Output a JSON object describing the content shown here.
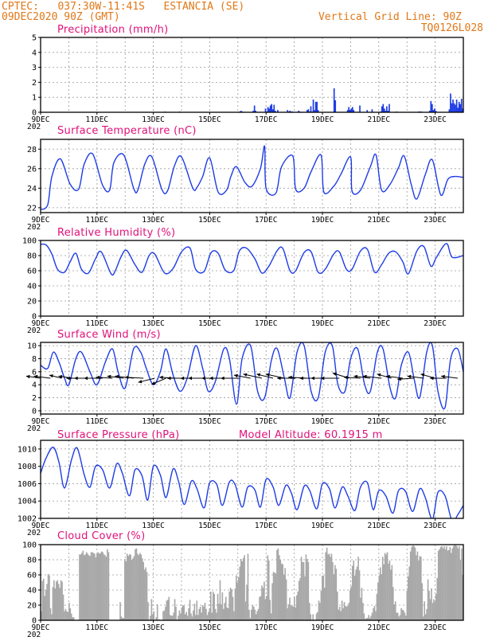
{
  "header": {
    "left_line1": "CPTEC:   037:30W-11:41S   ESTANCIA (SE)",
    "left_line2": "09DEC2020 90Z (GMT)",
    "right_line1": "Vertical Grid Line: 90Z",
    "right_line2": "TQ0126L028"
  },
  "colors": {
    "header": "#e07818",
    "title": "#e0107a",
    "series": "#1e3ce6",
    "cloud": "#a8a8a8",
    "arrow": "#000000"
  },
  "x_axis": {
    "start": "09DEC",
    "days": 15,
    "tick_labels": [
      "9DEC",
      "11DEC",
      "13DEC",
      "15DEC",
      "17DEC",
      "19DEC",
      "21DEC",
      "23DEC"
    ],
    "tick_day_offsets": [
      0,
      2,
      4,
      6,
      8,
      10,
      12,
      14
    ],
    "start_label_fragment": "202"
  },
  "chart_data": [
    {
      "type": "bar",
      "title": "Precipitation (mm/h)",
      "ylim": [
        0,
        5
      ],
      "yticks": [
        0,
        1,
        2,
        3,
        4,
        5
      ],
      "grid": true,
      "values": [
        0,
        0,
        0,
        0,
        0,
        0,
        0,
        0,
        0,
        0,
        0,
        0,
        0,
        0,
        0,
        0,
        0,
        0,
        0,
        0,
        0,
        0,
        0,
        0,
        0,
        0,
        0,
        0,
        0,
        0,
        0,
        0,
        0,
        0,
        0,
        0,
        0,
        0,
        0,
        0,
        0,
        0,
        0,
        0,
        0,
        0,
        0,
        0,
        0,
        0,
        0,
        0,
        0,
        0,
        0,
        0,
        0,
        0,
        0,
        0,
        0,
        0,
        0,
        0,
        0,
        0,
        0,
        0,
        0,
        0,
        0,
        0,
        0,
        0,
        0,
        0,
        0,
        0,
        0,
        0,
        0,
        0,
        0,
        0,
        0,
        0,
        0,
        0,
        0,
        0,
        0,
        0,
        0,
        0,
        0,
        0,
        0,
        0,
        0,
        0,
        0,
        0.05,
        0,
        0,
        0,
        0,
        0,
        0,
        0,
        0,
        0,
        0,
        0,
        0.05,
        0,
        0,
        0,
        0,
        0,
        0,
        0,
        0,
        0,
        0,
        0,
        0,
        0,
        0,
        0,
        0,
        0,
        0,
        0,
        0,
        0,
        0,
        0,
        0,
        0,
        0,
        0,
        0,
        0,
        0,
        0,
        0,
        0,
        0,
        0,
        0,
        0,
        0,
        0,
        0,
        0,
        0,
        0,
        0,
        0,
        0,
        0,
        0,
        0.05,
        0.1,
        0.05,
        0,
        0,
        0,
        0,
        0,
        0,
        0,
        0,
        0.1,
        0.45,
        0.1,
        0,
        0,
        0,
        0,
        0,
        0,
        0,
        0.25,
        0.05,
        0.35,
        0.25,
        0.45,
        0.55,
        0.2,
        0.5,
        0.1,
        0,
        0.15,
        0,
        0,
        0,
        0,
        0,
        0,
        0,
        0.15,
        0.05,
        0.1,
        0.05,
        0.05,
        0,
        0,
        0,
        0,
        0.1,
        0.05,
        0,
        0,
        0,
        0,
        0,
        0.15,
        0.2,
        0.05,
        0.4,
        0.05,
        0.85,
        0.15,
        0.7,
        0.7,
        0.15,
        0,
        0,
        0,
        0,
        0,
        0,
        0,
        0,
        0,
        0,
        0,
        0,
        1.6,
        0.8,
        0,
        0,
        0,
        0,
        0,
        0,
        0,
        0,
        0,
        0.15,
        0.35,
        0.15,
        0.25,
        0.35,
        0.15,
        0,
        0,
        0,
        0,
        0.45,
        0,
        0,
        0,
        0,
        0,
        0.15,
        0,
        0,
        0,
        0.2,
        0,
        0,
        0,
        0,
        0,
        0,
        0.05,
        0.4,
        0.55,
        0.25,
        0.1,
        0.4,
        0.1,
        0.55,
        0,
        0,
        0,
        0,
        0,
        0.05,
        0,
        0,
        0,
        0,
        0,
        0,
        0,
        0,
        0,
        0,
        0,
        0,
        0,
        0,
        0,
        0,
        0,
        0.05,
        0.05,
        0.05,
        0,
        0,
        0,
        0,
        0,
        0,
        0.1,
        0.75,
        0.55,
        0.15,
        0.25,
        0.1,
        0,
        0,
        0,
        0,
        0,
        0,
        0,
        0,
        0,
        0,
        0.2,
        1.25,
        0.6,
        0.85,
        0.6,
        0.5,
        0.85,
        0.3,
        0.7,
        0.55,
        0.9,
        0.25
      ]
    },
    {
      "type": "line",
      "title": "Surface Temperature (nC)",
      "ylim": [
        21.5,
        29
      ],
      "yticks": [
        22,
        24,
        26,
        28
      ],
      "grid": true,
      "x": [
        0,
        0.25,
        0.4,
        0.7,
        1.05,
        1.35,
        1.55,
        1.85,
        2.2,
        2.45,
        2.6,
        2.95,
        3.3,
        3.45,
        3.7,
        3.95,
        4.3,
        4.5,
        4.75,
        5.0,
        5.4,
        5.55,
        5.75,
        6.0,
        6.3,
        6.6,
        6.75,
        6.95,
        7.25,
        7.5,
        7.8,
        7.95,
        8.0,
        8.35,
        8.55,
        8.95,
        9.05,
        9.35,
        9.6,
        9.95,
        10.05,
        10.4,
        10.65,
        11.0,
        11.05,
        11.35,
        11.7,
        11.9,
        12.1,
        12.4,
        12.7,
        12.9,
        13.15,
        13.35,
        13.65,
        13.9,
        14.2,
        14.45,
        14.7,
        15.0
      ],
      "values": [
        21.8,
        22.3,
        25.2,
        27.0,
        24.4,
        23.9,
        26.5,
        27.5,
        24.3,
        23.8,
        26.6,
        27.4,
        24.0,
        23.8,
        26.5,
        27.2,
        23.9,
        23.7,
        26.3,
        27.2,
        24.0,
        24.1,
        25.2,
        27.1,
        23.6,
        23.8,
        25.2,
        26.2,
        24.6,
        24.2,
        26.0,
        28.3,
        24.0,
        23.5,
        26.2,
        27.3,
        23.9,
        24.0,
        25.7,
        27.4,
        23.6,
        24.2,
        25.4,
        27.2,
        23.7,
        23.8,
        26.2,
        27.4,
        23.8,
        24.4,
        26.1,
        27.3,
        24.4,
        22.9,
        25.4,
        26.9,
        23.3,
        24.9,
        25.2,
        25.1
      ]
    },
    {
      "type": "line",
      "title": "Relative Humidity (%)",
      "ylim": [
        0,
        100
      ],
      "yticks": [
        0,
        20,
        40,
        60,
        80,
        100
      ],
      "grid": true,
      "x": [
        0,
        0.2,
        0.4,
        0.6,
        0.85,
        1.05,
        1.25,
        1.45,
        1.7,
        1.95,
        2.15,
        2.5,
        2.65,
        2.85,
        3.05,
        3.35,
        3.6,
        3.85,
        4.05,
        4.4,
        4.7,
        5.0,
        5.3,
        5.5,
        5.8,
        6.05,
        6.3,
        6.55,
        6.85,
        7.05,
        7.3,
        7.6,
        7.85,
        8.1,
        8.4,
        8.6,
        8.85,
        9.05,
        9.35,
        9.6,
        9.85,
        10.1,
        10.4,
        10.6,
        10.85,
        11.05,
        11.35,
        11.6,
        11.85,
        12.1,
        12.35,
        12.6,
        12.85,
        13.05,
        13.35,
        13.6,
        13.85,
        14.05,
        14.4,
        14.6,
        15.0
      ],
      "values": [
        95,
        94,
        82,
        62,
        58,
        72,
        83,
        62,
        57,
        76,
        85,
        56,
        60,
        78,
        87,
        68,
        58,
        80,
        82,
        57,
        63,
        85,
        90,
        62,
        59,
        84,
        83,
        61,
        60,
        86,
        90,
        76,
        57,
        66,
        87,
        89,
        60,
        60,
        84,
        85,
        58,
        62,
        82,
        85,
        62,
        62,
        86,
        88,
        58,
        68,
        83,
        85,
        72,
        56,
        86,
        92,
        66,
        78,
        96,
        78,
        80
      ]
    },
    {
      "type": "line",
      "title": "Surface Wind (m/s)",
      "ylim": [
        -0.5,
        10.5
      ],
      "yticks": [
        0,
        2,
        4,
        6,
        8,
        10
      ],
      "grid": true,
      "x": [
        0,
        0.25,
        0.45,
        0.65,
        0.85,
        1.0,
        1.25,
        1.45,
        1.75,
        2.0,
        2.3,
        2.55,
        2.75,
        3.0,
        3.3,
        3.55,
        3.75,
        4.0,
        4.25,
        4.45,
        4.7,
        4.95,
        5.2,
        5.5,
        5.75,
        5.95,
        6.2,
        6.5,
        6.7,
        6.95,
        7.15,
        7.45,
        7.7,
        7.95,
        8.2,
        8.4,
        8.65,
        8.85,
        9.1,
        9.35,
        9.6,
        9.85,
        10.1,
        10.35,
        10.55,
        10.8,
        11.0,
        11.25,
        11.5,
        11.7,
        11.95,
        12.15,
        12.4,
        12.6,
        12.8,
        13.05,
        13.25,
        13.45,
        13.7,
        13.9,
        14.1,
        14.35,
        14.55,
        14.8,
        15.0
      ],
      "values": [
        7,
        6.5,
        9,
        7.5,
        5,
        4,
        8,
        9,
        6,
        4,
        7.5,
        9.5,
        6,
        3.5,
        9.5,
        9,
        6.5,
        4,
        6,
        9.5,
        5.5,
        3,
        5,
        10,
        6.5,
        3,
        4.5,
        9.5,
        8,
        1,
        8,
        10,
        3,
        2,
        8,
        9.5,
        5,
        2,
        9,
        10,
        3,
        2,
        9,
        10,
        4,
        3,
        8,
        9.5,
        4,
        3,
        9,
        9.5,
        3.5,
        2,
        7,
        9,
        5,
        2,
        9,
        10,
        3,
        0.5,
        8,
        9.5,
        6
      ],
      "arrows": {
        "x": [
          0.0,
          0.35,
          0.75,
          1.15,
          1.5,
          1.85,
          2.2,
          2.55,
          2.95,
          3.3,
          3.65,
          4.05,
          4.45,
          4.8,
          5.15,
          5.55,
          5.9,
          6.3,
          6.65,
          7.05,
          7.45,
          7.85,
          8.25,
          8.65,
          9.05,
          9.45,
          9.85,
          10.25,
          10.6,
          10.95,
          11.35,
          11.7,
          12.1,
          12.45,
          12.85,
          13.25,
          13.6,
          14.0,
          14.4,
          14.8
        ],
        "u": [
          -0.7,
          -0.8,
          -0.6,
          -0.7,
          -0.8,
          -0.9,
          -0.9,
          -0.8,
          -0.8,
          -0.9,
          -0.9,
          -0.8,
          -0.7,
          -0.8,
          -0.9,
          -0.8,
          -0.9,
          -0.8,
          -0.9,
          -0.9,
          -0.8,
          -0.9,
          -0.8,
          -0.9,
          -0.9,
          -0.9,
          -0.9,
          -0.9,
          -0.9,
          -0.8,
          -0.8,
          -0.8,
          -0.9,
          -0.7,
          -0.8,
          -0.8,
          -0.8,
          -0.7,
          -0.8,
          -0.8
        ],
        "v": [
          0.1,
          0.1,
          0.15,
          0.1,
          0.0,
          0.0,
          0.0,
          0.05,
          0.1,
          0.1,
          0.05,
          -0.2,
          -0.3,
          0.05,
          0.0,
          0.0,
          0.0,
          0.0,
          0.0,
          0.0,
          0.15,
          0.2,
          0.2,
          0.2,
          0.0,
          0.05,
          0.0,
          0.0,
          0.0,
          0.25,
          0.05,
          0.1,
          0.1,
          0.2,
          0.1,
          -0.05,
          0.1,
          0.2,
          0.0,
          0.1
        ]
      }
    },
    {
      "type": "line",
      "title": "Surface Pressure (hPa)",
      "annotation": "Model Altitude: 60.1915  m",
      "ylim": [
        1002,
        1011
      ],
      "yticks": [
        1002,
        1004,
        1006,
        1008,
        1010
      ],
      "grid": true,
      "x": [
        0,
        0.2,
        0.45,
        0.65,
        0.85,
        1.1,
        1.3,
        1.55,
        1.75,
        1.95,
        2.2,
        2.45,
        2.7,
        2.9,
        3.15,
        3.35,
        3.6,
        3.8,
        4.0,
        4.25,
        4.45,
        4.7,
        4.9,
        5.1,
        5.35,
        5.55,
        5.8,
        6.0,
        6.25,
        6.45,
        6.7,
        6.9,
        7.15,
        7.35,
        7.6,
        7.8,
        8.0,
        8.25,
        8.45,
        8.7,
        8.9,
        9.1,
        9.35,
        9.55,
        9.8,
        10.0,
        10.25,
        10.45,
        10.7,
        10.9,
        11.15,
        11.35,
        11.6,
        11.8,
        12.0,
        12.25,
        12.5,
        12.7,
        12.95,
        13.2,
        13.45,
        13.65,
        13.9,
        14.1,
        14.35,
        14.6,
        14.8,
        15.0
      ],
      "values": [
        1007.2,
        1009.0,
        1010.2,
        1008.5,
        1005.5,
        1008.8,
        1010.1,
        1007.0,
        1005.6,
        1008.0,
        1007.6,
        1005.5,
        1008.3,
        1007.2,
        1004.6,
        1007.6,
        1006.9,
        1004.1,
        1008.0,
        1007.0,
        1004.4,
        1007.7,
        1006.2,
        1003.6,
        1006.3,
        1005.4,
        1003.2,
        1006.1,
        1005.9,
        1003.5,
        1006.2,
        1005.9,
        1003.3,
        1005.6,
        1005.3,
        1003.3,
        1006.5,
        1005.6,
        1003.5,
        1005.8,
        1004.9,
        1003.0,
        1005.7,
        1005.2,
        1003.1,
        1006.0,
        1005.4,
        1003.2,
        1005.6,
        1004.6,
        1002.9,
        1005.6,
        1006.1,
        1003.0,
        1005.2,
        1004.6,
        1002.6,
        1005.2,
        1005.1,
        1002.8,
        1005.4,
        1004.4,
        1001.9,
        1005.0,
        1004.6,
        1001.7,
        1002.4,
        1003.5
      ]
    },
    {
      "type": "bar",
      "title": "Cloud Cover (%)",
      "ylim": [
        0,
        100
      ],
      "yticks": [
        0,
        20,
        40,
        60,
        80,
        100
      ],
      "grid": true,
      "values": [
        12,
        52,
        55,
        32,
        40,
        48,
        61,
        59,
        16,
        8,
        44,
        53,
        42,
        51,
        53,
        48,
        43,
        53,
        51,
        34,
        12,
        15,
        12,
        11,
        23,
        16,
        9,
        4,
        4,
        0,
        0,
        0,
        0,
        87,
        87,
        89,
        92,
        86,
        87,
        90,
        88,
        86,
        85,
        90,
        90,
        89,
        88,
        83,
        88,
        90,
        88,
        89,
        91,
        90,
        87,
        86,
        84,
        94,
        90,
        0,
        0,
        0,
        0,
        0,
        0,
        0,
        0,
        0,
        24,
        5,
        3,
        3,
        81,
        78,
        88,
        85,
        87,
        87,
        80,
        82,
        85,
        94,
        95,
        88,
        86,
        89,
        87,
        82,
        77,
        67,
        70,
        64,
        24,
        1,
        6,
        28,
        8,
        12,
        0,
        4,
        21,
        1,
        1,
        0,
        0,
        12,
        13,
        18,
        26,
        27,
        31,
        7,
        6,
        6,
        10,
        28,
        18,
        1,
        6,
        13,
        9,
        17,
        20,
        19,
        8,
        11,
        6,
        16,
        27,
        9,
        5,
        13,
        22,
        7,
        26,
        7,
        15,
        18,
        10,
        20,
        18,
        23,
        15,
        7,
        11,
        16,
        38,
        10,
        38,
        35,
        15,
        10,
        35,
        22,
        53,
        21,
        37,
        15,
        23,
        31,
        17,
        16,
        38,
        43,
        41,
        31,
        12,
        42,
        59,
        50,
        57,
        71,
        81,
        78,
        82,
        86,
        25,
        47,
        88,
        14,
        3,
        14,
        20,
        18,
        14,
        8,
        12,
        15,
        31,
        32,
        46,
        43,
        51,
        28,
        32,
        86,
        79,
        27,
        9,
        49,
        64,
        63,
        62,
        93,
        95,
        86,
        80,
        75,
        74,
        60,
        69,
        54,
        16,
        21,
        30,
        20,
        19,
        18,
        31,
        17,
        33,
        38,
        52,
        56,
        84,
        77,
        77,
        58,
        87,
        81,
        77,
        23,
        8,
        1,
        8,
        0,
        1,
        9,
        11,
        26,
        23,
        39,
        59,
        59,
        43,
        90,
        96,
        87,
        88,
        84,
        88,
        77,
        61,
        73,
        68,
        38,
        14,
        18,
        12,
        26,
        16,
        24,
        19,
        18,
        19,
        23,
        40,
        45,
        72,
        79,
        59,
        67,
        71,
        84,
        66,
        30,
        43,
        23,
        9,
        2,
        3,
        3,
        7,
        3,
        6,
        10,
        16,
        19,
        12,
        35,
        50,
        59,
        70,
        61,
        84,
        74,
        89,
        87,
        90,
        75,
        79,
        67,
        73,
        44,
        21,
        25,
        10,
        10,
        5,
        7,
        16,
        14,
        13,
        10,
        6,
        39,
        58,
        71,
        91,
        97,
        99,
        98,
        96,
        86,
        91,
        79,
        85,
        84,
        49,
        5,
        25,
        8,
        15,
        54,
        39,
        28,
        42,
        23,
        28,
        24,
        35,
        56,
        92,
        94,
        97,
        98,
        95,
        98,
        94,
        98,
        92,
        93,
        97,
        89,
        95,
        98,
        100,
        99,
        98,
        95,
        98,
        80,
        95,
        60
      ]
    }
  ]
}
